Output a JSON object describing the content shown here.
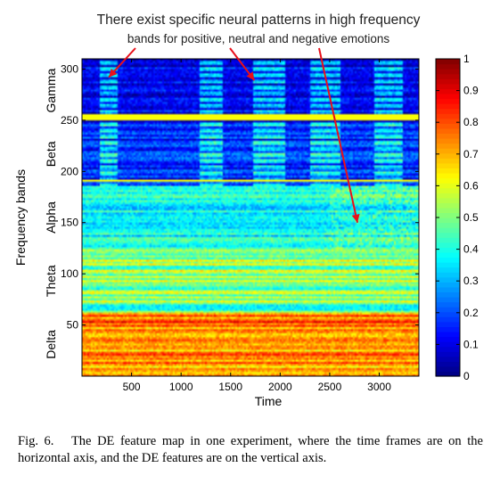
{
  "annotation": {
    "line1": "There exist specific neural patterns in high frequency",
    "line2": "bands for positive, neutral and negative emotions"
  },
  "caption": {
    "label": "Fig. 6.",
    "text": "The DE feature map in one experiment, where the time frames are on the horizontal axis, and the DE features are on the vertical axis."
  },
  "chart_data": {
    "type": "heatmap",
    "xlabel": "Time",
    "ylabel": "Frequency bands",
    "xlim": [
      0,
      3400
    ],
    "ylim": [
      0,
      310
    ],
    "x_ticks": [
      500,
      1000,
      1500,
      2000,
      2500,
      3000
    ],
    "y_ticks": [
      50,
      100,
      150,
      200,
      250,
      300
    ],
    "band_labels": [
      {
        "name": "Gamma",
        "center": 279
      },
      {
        "name": "Beta",
        "center": 217
      },
      {
        "name": "Alpha",
        "center": 155
      },
      {
        "name": "Theta",
        "center": 93
      },
      {
        "name": "Delta",
        "center": 31
      }
    ],
    "band_rows": [
      {
        "band": "Delta",
        "from": 0,
        "to": 62,
        "level": 0.74
      },
      {
        "band": "Theta",
        "from": 62,
        "to": 124,
        "level": 0.5
      },
      {
        "band": "Alpha",
        "from": 124,
        "to": 186,
        "level": 0.38
      },
      {
        "band": "Beta",
        "from": 186,
        "to": 248,
        "level": 0.16
      },
      {
        "band": "Gamma",
        "from": 248,
        "to": 310,
        "level": 0.12
      }
    ],
    "colorbar": {
      "min": 0,
      "max": 1,
      "ticks": [
        0,
        0.1,
        0.2,
        0.3,
        0.4,
        0.5,
        0.6,
        0.7,
        0.8,
        0.9,
        1
      ],
      "colormap": "jet"
    },
    "annotation_targets": [
      {
        "x": 270,
        "y": 292
      },
      {
        "x": 1740,
        "y": 289
      },
      {
        "x": 2780,
        "y": 150
      }
    ]
  }
}
